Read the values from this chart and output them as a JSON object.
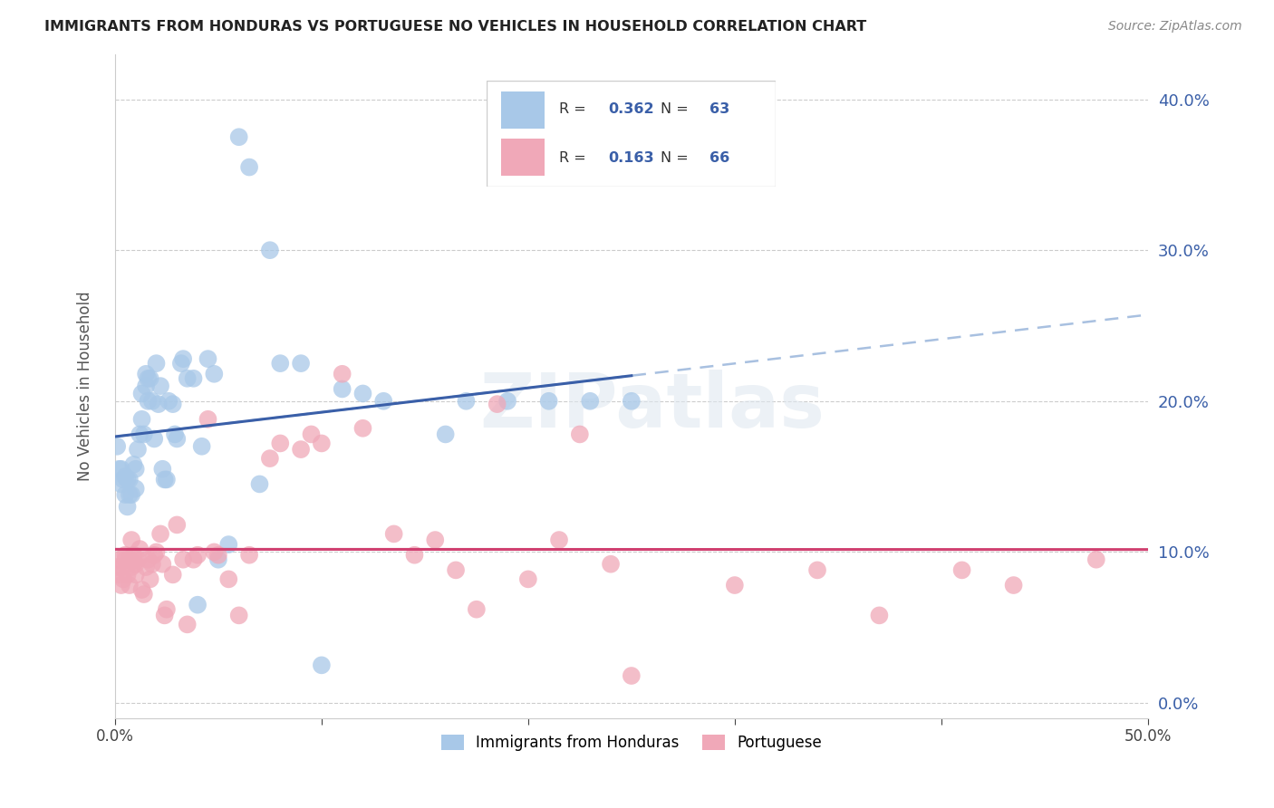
{
  "title": "IMMIGRANTS FROM HONDURAS VS PORTUGUESE NO VEHICLES IN HOUSEHOLD CORRELATION CHART",
  "source": "Source: ZipAtlas.com",
  "ylabel": "No Vehicles in Household",
  "legend1_label": "Immigrants from Honduras",
  "legend2_label": "Portuguese",
  "R1": "0.362",
  "N1": "63",
  "R2": "0.163",
  "N2": "66",
  "blue_color": "#A8C8E8",
  "pink_color": "#F0A8B8",
  "line_blue": "#3A5FA8",
  "line_pink": "#D04070",
  "dash_blue": "#A8C0E0",
  "watermark_text": "ZIPatlas",
  "xlim": [
    0,
    0.5
  ],
  "ylim": [
    -0.01,
    0.43
  ],
  "blue_scatter_x": [
    0.001,
    0.002,
    0.003,
    0.003,
    0.004,
    0.005,
    0.005,
    0.006,
    0.006,
    0.007,
    0.007,
    0.008,
    0.009,
    0.01,
    0.01,
    0.011,
    0.012,
    0.013,
    0.013,
    0.014,
    0.015,
    0.015,
    0.016,
    0.016,
    0.017,
    0.018,
    0.019,
    0.02,
    0.021,
    0.022,
    0.023,
    0.024,
    0.025,
    0.026,
    0.028,
    0.029,
    0.03,
    0.032,
    0.033,
    0.035,
    0.038,
    0.04,
    0.042,
    0.045,
    0.048,
    0.05,
    0.055,
    0.06,
    0.065,
    0.07,
    0.075,
    0.08,
    0.09,
    0.1,
    0.11,
    0.12,
    0.13,
    0.16,
    0.17,
    0.19,
    0.21,
    0.23,
    0.25
  ],
  "blue_scatter_y": [
    0.17,
    0.155,
    0.145,
    0.155,
    0.148,
    0.138,
    0.15,
    0.13,
    0.148,
    0.148,
    0.138,
    0.138,
    0.158,
    0.155,
    0.142,
    0.168,
    0.178,
    0.188,
    0.205,
    0.178,
    0.21,
    0.218,
    0.215,
    0.2,
    0.215,
    0.2,
    0.175,
    0.225,
    0.198,
    0.21,
    0.155,
    0.148,
    0.148,
    0.2,
    0.198,
    0.178,
    0.175,
    0.225,
    0.228,
    0.215,
    0.215,
    0.065,
    0.17,
    0.228,
    0.218,
    0.095,
    0.105,
    0.375,
    0.355,
    0.145,
    0.3,
    0.225,
    0.225,
    0.025,
    0.208,
    0.205,
    0.2,
    0.178,
    0.2,
    0.2,
    0.2,
    0.2,
    0.2
  ],
  "pink_scatter_x": [
    0.001,
    0.002,
    0.002,
    0.003,
    0.003,
    0.004,
    0.005,
    0.005,
    0.006,
    0.007,
    0.007,
    0.008,
    0.008,
    0.009,
    0.01,
    0.01,
    0.011,
    0.012,
    0.013,
    0.014,
    0.015,
    0.016,
    0.017,
    0.018,
    0.019,
    0.02,
    0.022,
    0.023,
    0.024,
    0.025,
    0.028,
    0.03,
    0.033,
    0.035,
    0.038,
    0.04,
    0.045,
    0.048,
    0.05,
    0.055,
    0.06,
    0.065,
    0.075,
    0.08,
    0.09,
    0.095,
    0.1,
    0.11,
    0.12,
    0.135,
    0.145,
    0.155,
    0.165,
    0.175,
    0.185,
    0.2,
    0.215,
    0.225,
    0.24,
    0.25,
    0.3,
    0.34,
    0.37,
    0.41,
    0.435,
    0.475
  ],
  "pink_scatter_y": [
    0.09,
    0.085,
    0.095,
    0.078,
    0.09,
    0.082,
    0.095,
    0.098,
    0.085,
    0.078,
    0.095,
    0.108,
    0.09,
    0.098,
    0.085,
    0.092,
    0.095,
    0.102,
    0.075,
    0.072,
    0.09,
    0.095,
    0.082,
    0.092,
    0.098,
    0.1,
    0.112,
    0.092,
    0.058,
    0.062,
    0.085,
    0.118,
    0.095,
    0.052,
    0.095,
    0.098,
    0.188,
    0.1,
    0.098,
    0.082,
    0.058,
    0.098,
    0.162,
    0.172,
    0.168,
    0.178,
    0.172,
    0.218,
    0.182,
    0.112,
    0.098,
    0.108,
    0.088,
    0.062,
    0.198,
    0.082,
    0.108,
    0.178,
    0.092,
    0.018,
    0.078,
    0.088,
    0.058,
    0.088,
    0.078,
    0.095
  ]
}
